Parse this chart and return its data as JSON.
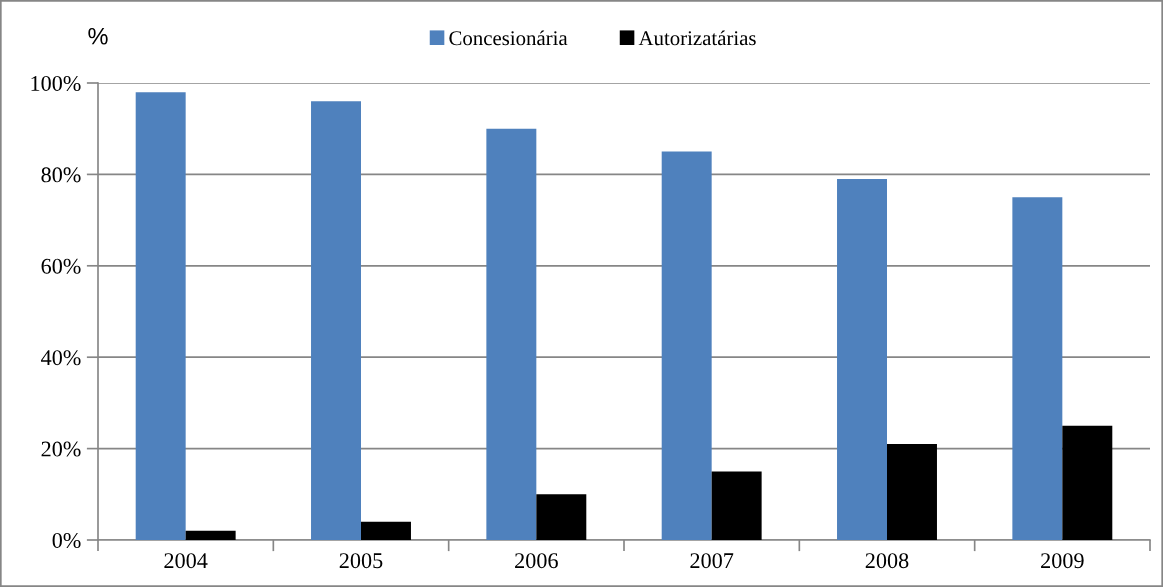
{
  "chart_data": {
    "type": "bar",
    "ylabel": "%",
    "categories": [
      "2004",
      "2005",
      "2006",
      "2007",
      "2008",
      "2009"
    ],
    "series": [
      {
        "name": "Concesionária",
        "color": "#4f81bd",
        "values": [
          98,
          96,
          90,
          85,
          79,
          75
        ]
      },
      {
        "name": "Autorizatárias",
        "color": "#000000",
        "values": [
          2,
          4,
          10,
          15,
          21,
          25
        ]
      }
    ],
    "ylim": [
      0,
      100
    ],
    "yticks": [
      {
        "value": 0,
        "label": "0%"
      },
      {
        "value": 20,
        "label": "20%"
      },
      {
        "value": 40,
        "label": "40%"
      },
      {
        "value": 60,
        "label": "60%"
      },
      {
        "value": 80,
        "label": "80%"
      },
      {
        "value": 100,
        "label": "100%"
      }
    ],
    "grid": "y",
    "legend": "top"
  }
}
